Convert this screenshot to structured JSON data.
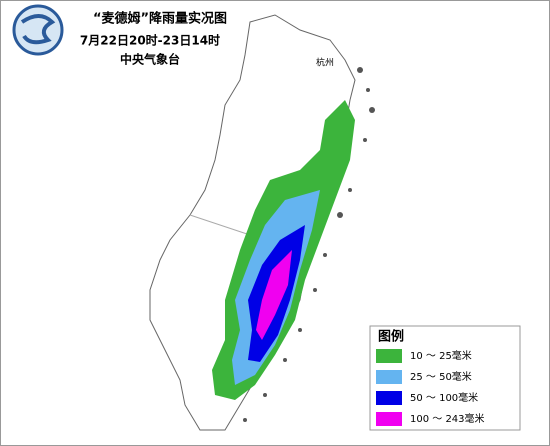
{
  "header": {
    "title": "“麦德姆”降雨量实况图",
    "period": "7月22日20时-23日14时",
    "agency": "中央气象台"
  },
  "places": {
    "hangzhou": "杭州"
  },
  "legend": {
    "title": "图例",
    "items": [
      {
        "label": "10 ～ 25毫米",
        "color": "#3cb43c"
      },
      {
        "label": "25 ～ 50毫米",
        "color": "#64b4f0"
      },
      {
        "label": "50 ～ 100毫米",
        "color": "#0000e6"
      },
      {
        "label": "100 ～ 243毫米",
        "color": "#f000f0"
      }
    ]
  }
}
